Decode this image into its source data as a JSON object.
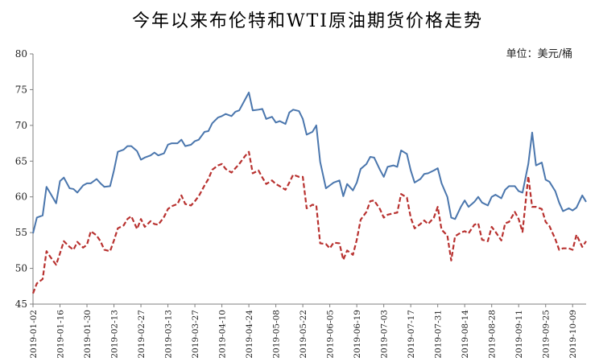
{
  "chart_data": {
    "type": "line",
    "title": "今年以来布伦特和WTI原油期货价格走势",
    "unit_label": "单位：美元/桶",
    "xlabel": "",
    "ylabel": "",
    "ylim": [
      45,
      80
    ],
    "y_ticks": [
      "45",
      "50",
      "55",
      "60",
      "65",
      "70",
      "75",
      "80"
    ],
    "x_ticks": [
      "2019-01-02",
      "2019-01-16",
      "2019-01-30",
      "2019-02-13",
      "2019-02-27",
      "2019-03-13",
      "2019-03-27",
      "2019-04-10",
      "2019-04-24",
      "2019-05-08",
      "2019-05-22",
      "2019-06-05",
      "2019-06-19",
      "2019-07-03",
      "2019-07-17",
      "2019-07-31",
      "2019-08-14",
      "2019-08-28",
      "2019-09-11",
      "2019-09-25",
      "2019-10-09"
    ],
    "x_range": [
      "2019-01-02",
      "2019-10-16"
    ],
    "grid": false,
    "legend": "none",
    "series": [
      {
        "color": "#4a76ad",
        "style": "solid",
        "x": [
          "2019-01-02",
          "2019-01-04",
          "2019-01-07",
          "2019-01-09",
          "2019-01-11",
          "2019-01-14",
          "2019-01-16",
          "2019-01-18",
          "2019-01-21",
          "2019-01-23",
          "2019-01-25",
          "2019-01-28",
          "2019-01-30",
          "2019-02-01",
          "2019-02-04",
          "2019-02-06",
          "2019-02-08",
          "2019-02-11",
          "2019-02-13",
          "2019-02-15",
          "2019-02-18",
          "2019-02-20",
          "2019-02-22",
          "2019-02-25",
          "2019-02-27",
          "2019-03-01",
          "2019-03-04",
          "2019-03-06",
          "2019-03-08",
          "2019-03-11",
          "2019-03-13",
          "2019-03-15",
          "2019-03-18",
          "2019-03-20",
          "2019-03-22",
          "2019-03-25",
          "2019-03-27",
          "2019-03-29",
          "2019-04-01",
          "2019-04-03",
          "2019-04-05",
          "2019-04-08",
          "2019-04-10",
          "2019-04-12",
          "2019-04-15",
          "2019-04-17",
          "2019-04-19",
          "2019-04-22",
          "2019-04-24",
          "2019-04-26",
          "2019-04-29",
          "2019-05-01",
          "2019-05-03",
          "2019-05-06",
          "2019-05-08",
          "2019-05-10",
          "2019-05-13",
          "2019-05-15",
          "2019-05-17",
          "2019-05-20",
          "2019-05-22",
          "2019-05-24",
          "2019-05-27",
          "2019-05-29",
          "2019-05-31",
          "2019-06-03",
          "2019-06-05",
          "2019-06-07",
          "2019-06-10",
          "2019-06-12",
          "2019-06-14",
          "2019-06-17",
          "2019-06-19",
          "2019-06-21",
          "2019-06-24",
          "2019-06-26",
          "2019-06-28",
          "2019-07-01",
          "2019-07-03",
          "2019-07-05",
          "2019-07-08",
          "2019-07-10",
          "2019-07-12",
          "2019-07-15",
          "2019-07-17",
          "2019-07-19",
          "2019-07-22",
          "2019-07-24",
          "2019-07-26",
          "2019-07-29",
          "2019-07-31",
          "2019-08-02",
          "2019-08-05",
          "2019-08-07",
          "2019-08-09",
          "2019-08-12",
          "2019-08-14",
          "2019-08-16",
          "2019-08-19",
          "2019-08-21",
          "2019-08-23",
          "2019-08-26",
          "2019-08-28",
          "2019-08-30",
          "2019-09-02",
          "2019-09-04",
          "2019-09-06",
          "2019-09-09",
          "2019-09-11",
          "2019-09-13",
          "2019-09-16",
          "2019-09-18",
          "2019-09-20",
          "2019-09-23",
          "2019-09-25",
          "2019-09-27",
          "2019-09-30",
          "2019-10-02",
          "2019-10-04",
          "2019-10-07",
          "2019-10-09",
          "2019-10-11",
          "2019-10-14",
          "2019-10-16"
        ],
        "y": [
          54.9,
          57.1,
          57.4,
          61.4,
          60.5,
          59.1,
          62.2,
          62.7,
          61.2,
          61.1,
          60.6,
          61.6,
          61.9,
          61.9,
          62.5,
          61.9,
          61.4,
          61.5,
          63.7,
          66.3,
          66.6,
          67.1,
          67.1,
          66.4,
          65.2,
          65.5,
          65.8,
          66.2,
          65.8,
          66.1,
          67.3,
          67.5,
          67.5,
          68.0,
          67.1,
          67.3,
          67.8,
          68.0,
          69.1,
          69.2,
          70.3,
          71.1,
          71.3,
          71.6,
          71.3,
          71.9,
          72.1,
          73.6,
          74.6,
          72.1,
          72.2,
          72.3,
          70.9,
          71.2,
          70.4,
          70.6,
          70.2,
          71.8,
          72.2,
          72.0,
          70.9,
          68.7,
          69.1,
          70.0,
          64.9,
          61.2,
          61.6,
          62.0,
          62.3,
          60.1,
          61.8,
          60.9,
          62.0,
          63.9,
          64.6,
          65.6,
          65.5,
          63.8,
          62.8,
          64.2,
          64.4,
          64.2,
          66.5,
          66.0,
          63.7,
          62.0,
          62.5,
          63.2,
          63.3,
          63.7,
          64.0,
          61.9,
          60.0,
          57.1,
          56.9,
          58.6,
          59.5,
          58.6,
          59.3,
          60.0,
          59.2,
          58.8,
          60.0,
          60.3,
          59.8,
          61.0,
          61.5,
          61.5,
          60.8,
          60.6,
          64.6,
          69.0,
          64.4,
          64.8,
          62.4,
          62.1,
          60.8,
          59.2,
          58.0,
          58.4,
          58.1,
          58.5,
          60.2,
          59.3
        ]
      },
      {
        "color": "#b8312f",
        "style": "dashed",
        "x": [
          "2019-01-02",
          "2019-01-04",
          "2019-01-07",
          "2019-01-09",
          "2019-01-11",
          "2019-01-14",
          "2019-01-16",
          "2019-01-18",
          "2019-01-21",
          "2019-01-23",
          "2019-01-25",
          "2019-01-28",
          "2019-01-30",
          "2019-02-01",
          "2019-02-04",
          "2019-02-06",
          "2019-02-08",
          "2019-02-11",
          "2019-02-13",
          "2019-02-15",
          "2019-02-18",
          "2019-02-20",
          "2019-02-22",
          "2019-02-25",
          "2019-02-27",
          "2019-03-01",
          "2019-03-04",
          "2019-03-06",
          "2019-03-08",
          "2019-03-11",
          "2019-03-13",
          "2019-03-15",
          "2019-03-18",
          "2019-03-20",
          "2019-03-22",
          "2019-03-25",
          "2019-03-27",
          "2019-03-29",
          "2019-04-01",
          "2019-04-03",
          "2019-04-05",
          "2019-04-08",
          "2019-04-10",
          "2019-04-12",
          "2019-04-15",
          "2019-04-17",
          "2019-04-19",
          "2019-04-22",
          "2019-04-24",
          "2019-04-26",
          "2019-04-29",
          "2019-05-01",
          "2019-05-03",
          "2019-05-06",
          "2019-05-08",
          "2019-05-10",
          "2019-05-13",
          "2019-05-15",
          "2019-05-17",
          "2019-05-20",
          "2019-05-22",
          "2019-05-24",
          "2019-05-27",
          "2019-05-29",
          "2019-05-31",
          "2019-06-03",
          "2019-06-05",
          "2019-06-07",
          "2019-06-10",
          "2019-06-12",
          "2019-06-14",
          "2019-06-17",
          "2019-06-19",
          "2019-06-21",
          "2019-06-24",
          "2019-06-26",
          "2019-06-28",
          "2019-07-01",
          "2019-07-03",
          "2019-07-05",
          "2019-07-08",
          "2019-07-10",
          "2019-07-12",
          "2019-07-15",
          "2019-07-17",
          "2019-07-19",
          "2019-07-22",
          "2019-07-24",
          "2019-07-26",
          "2019-07-29",
          "2019-07-31",
          "2019-08-02",
          "2019-08-05",
          "2019-08-07",
          "2019-08-09",
          "2019-08-12",
          "2019-08-14",
          "2019-08-16",
          "2019-08-19",
          "2019-08-21",
          "2019-08-23",
          "2019-08-26",
          "2019-08-28",
          "2019-08-30",
          "2019-09-02",
          "2019-09-04",
          "2019-09-06",
          "2019-09-09",
          "2019-09-11",
          "2019-09-13",
          "2019-09-16",
          "2019-09-18",
          "2019-09-20",
          "2019-09-23",
          "2019-09-25",
          "2019-09-27",
          "2019-09-30",
          "2019-10-02",
          "2019-10-04",
          "2019-10-07",
          "2019-10-09",
          "2019-10-11",
          "2019-10-14",
          "2019-10-16"
        ],
        "y": [
          46.5,
          47.9,
          48.5,
          52.4,
          51.6,
          50.5,
          52.1,
          53.8,
          53.0,
          52.6,
          53.7,
          52.9,
          53.3,
          55.2,
          54.6,
          53.8,
          52.6,
          52.4,
          53.9,
          55.6,
          56.0,
          56.9,
          57.3,
          55.5,
          56.9,
          55.8,
          56.6,
          56.2,
          56.1,
          57.2,
          58.3,
          58.7,
          59.0,
          60.2,
          59.0,
          58.8,
          59.4,
          60.1,
          61.6,
          62.5,
          63.8,
          64.4,
          64.6,
          63.9,
          63.4,
          64.0,
          64.6,
          65.7,
          66.3,
          63.3,
          63.7,
          62.7,
          61.8,
          62.3,
          61.8,
          61.5,
          61.0,
          62.0,
          63.1,
          62.8,
          62.8,
          58.4,
          58.9,
          58.8,
          53.5,
          53.4,
          52.8,
          53.6,
          53.5,
          51.2,
          52.5,
          51.9,
          54.0,
          56.8,
          57.9,
          59.4,
          59.5,
          58.3,
          57.1,
          57.5,
          57.7,
          57.8,
          60.4,
          59.9,
          57.1,
          55.6,
          56.2,
          56.7,
          56.2,
          57.1,
          58.6,
          55.4,
          54.6,
          51.1,
          54.5,
          55.0,
          55.2,
          54.9,
          56.1,
          56.3,
          54.0,
          53.8,
          55.8,
          55.1,
          53.9,
          56.3,
          56.5,
          57.9,
          56.9,
          55.1,
          62.9,
          58.6,
          58.6,
          58.3,
          56.5,
          55.9,
          54.1,
          52.6,
          52.8,
          52.8,
          52.6,
          54.7,
          53.0,
          53.8
        ]
      }
    ]
  }
}
